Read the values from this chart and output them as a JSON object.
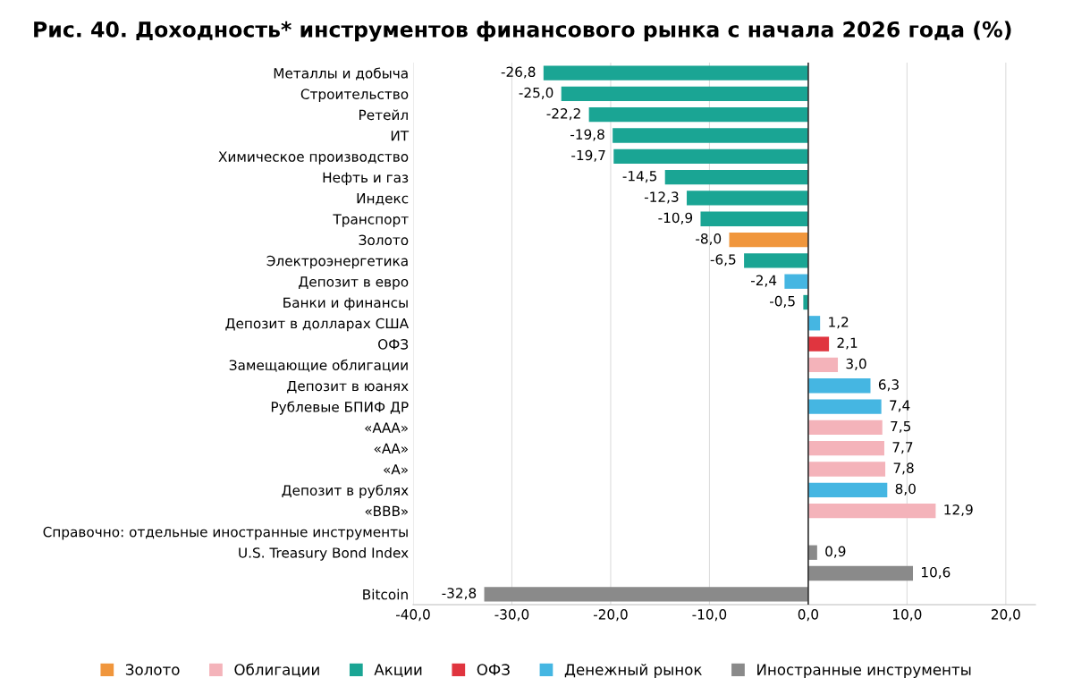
{
  "chart_data": {
    "type": "bar",
    "orientation": "horizontal",
    "title": "Рис. 40. Доходность* инструментов финансового рынка с начала 2026 года (%)",
    "categories": [
      "Металлы и добыча",
      "Строительство",
      "Ретейл",
      "ИТ",
      "Химическое производство",
      "Нефть и газ",
      "Индекс",
      "Транспорт",
      "Золото",
      "Электроэнергетика",
      "Депозит в евро",
      "Банки и финансы",
      "Депозит в долларах США",
      "ОФЗ",
      "Замещающие облигации",
      "Депозит в юанях",
      "Рублевые БПИФ ДР",
      "«ААА»",
      "«АА»",
      "«А»",
      "Депозит в рублях",
      "«BBB»",
      "Справочно: отдельные иностранные инструменты",
      "U.S. Treasury Bond Index",
      null,
      "Bitcoin"
    ],
    "series": [
      {
        "name": "Золото",
        "color": "#f0963c",
        "values": [
          null,
          null,
          null,
          null,
          null,
          null,
          null,
          null,
          -8.0,
          null,
          null,
          null,
          null,
          null,
          null,
          null,
          null,
          null,
          null,
          null,
          null,
          null,
          null,
          null,
          null,
          null
        ],
        "value_labels": [
          null,
          null,
          null,
          null,
          null,
          null,
          null,
          null,
          "-8,0",
          null,
          null,
          null,
          null,
          null,
          null,
          null,
          null,
          null,
          null,
          null,
          null,
          null,
          null,
          null,
          null,
          null
        ]
      },
      {
        "name": "Облигации",
        "color": "#f4b3ba",
        "values": [
          null,
          null,
          null,
          null,
          null,
          null,
          null,
          null,
          null,
          null,
          null,
          null,
          null,
          null,
          3.0,
          null,
          null,
          7.5,
          7.7,
          7.8,
          null,
          12.9,
          null,
          null,
          null,
          null
        ],
        "value_labels": [
          null,
          null,
          null,
          null,
          null,
          null,
          null,
          null,
          null,
          null,
          null,
          null,
          null,
          null,
          "3,0",
          null,
          null,
          "7,5",
          "7,7",
          "7,8",
          null,
          "12,9",
          null,
          null,
          null,
          null
        ]
      },
      {
        "name": "Акции",
        "color": "#1aa594",
        "values": [
          -26.8,
          -25.0,
          -22.2,
          -19.8,
          -19.7,
          -14.5,
          -12.3,
          -10.9,
          null,
          -6.5,
          null,
          -0.5,
          null,
          null,
          null,
          null,
          null,
          null,
          null,
          null,
          null,
          null,
          null,
          null,
          null,
          null
        ],
        "value_labels": [
          "-26,8",
          "-25,0",
          "-22,2",
          "-19,8",
          "-19,7",
          "-14,5",
          "-12,3",
          "-10,9",
          null,
          "-6,5",
          null,
          "-0,5",
          null,
          null,
          null,
          null,
          null,
          null,
          null,
          null,
          null,
          null,
          null,
          null,
          null,
          null
        ]
      },
      {
        "name": "ОФЗ",
        "color": "#e0353f",
        "values": [
          null,
          null,
          null,
          null,
          null,
          null,
          null,
          null,
          null,
          null,
          null,
          null,
          null,
          2.1,
          null,
          null,
          null,
          null,
          null,
          null,
          null,
          null,
          null,
          null,
          null,
          null
        ],
        "value_labels": [
          null,
          null,
          null,
          null,
          null,
          null,
          null,
          null,
          null,
          null,
          null,
          null,
          null,
          "2,1",
          null,
          null,
          null,
          null,
          null,
          null,
          null,
          null,
          null,
          null,
          null,
          null
        ]
      },
      {
        "name": "Денежный рынок",
        "color": "#45b6e2",
        "values": [
          null,
          null,
          null,
          null,
          null,
          null,
          null,
          null,
          null,
          null,
          -2.4,
          null,
          1.2,
          null,
          null,
          6.3,
          7.4,
          null,
          null,
          null,
          8.0,
          null,
          null,
          null,
          null,
          null
        ],
        "value_labels": [
          null,
          null,
          null,
          null,
          null,
          null,
          null,
          null,
          null,
          null,
          "-2,4",
          null,
          "1,2",
          null,
          null,
          "6,3",
          "7,4",
          null,
          null,
          null,
          "8,0",
          null,
          null,
          null,
          null,
          null
        ]
      },
      {
        "name": "Иностранные инструменты",
        "color": "#8a8a8a",
        "values": [
          null,
          null,
          null,
          null,
          null,
          null,
          null,
          null,
          null,
          null,
          null,
          null,
          null,
          null,
          null,
          null,
          null,
          null,
          null,
          null,
          null,
          null,
          null,
          0.9,
          10.6,
          -32.8
        ],
        "value_labels": [
          null,
          null,
          null,
          null,
          null,
          null,
          null,
          null,
          null,
          null,
          null,
          null,
          null,
          null,
          null,
          null,
          null,
          null,
          null,
          null,
          null,
          null,
          null,
          "0,9",
          "10,6",
          "-32,8"
        ]
      }
    ],
    "xlim": [
      -40,
      23
    ],
    "xticks": [
      {
        "value": -40,
        "label": "-40,0"
      },
      {
        "value": -30,
        "label": "-30,0"
      },
      {
        "value": -20,
        "label": "-20,0"
      },
      {
        "value": -10,
        "label": "-10,0"
      },
      {
        "value": 0,
        "label": "0,0"
      },
      {
        "value": 10,
        "label": "10,0"
      },
      {
        "value": 20,
        "label": "20,0"
      }
    ],
    "grid": "x",
    "legend": "bottom"
  }
}
